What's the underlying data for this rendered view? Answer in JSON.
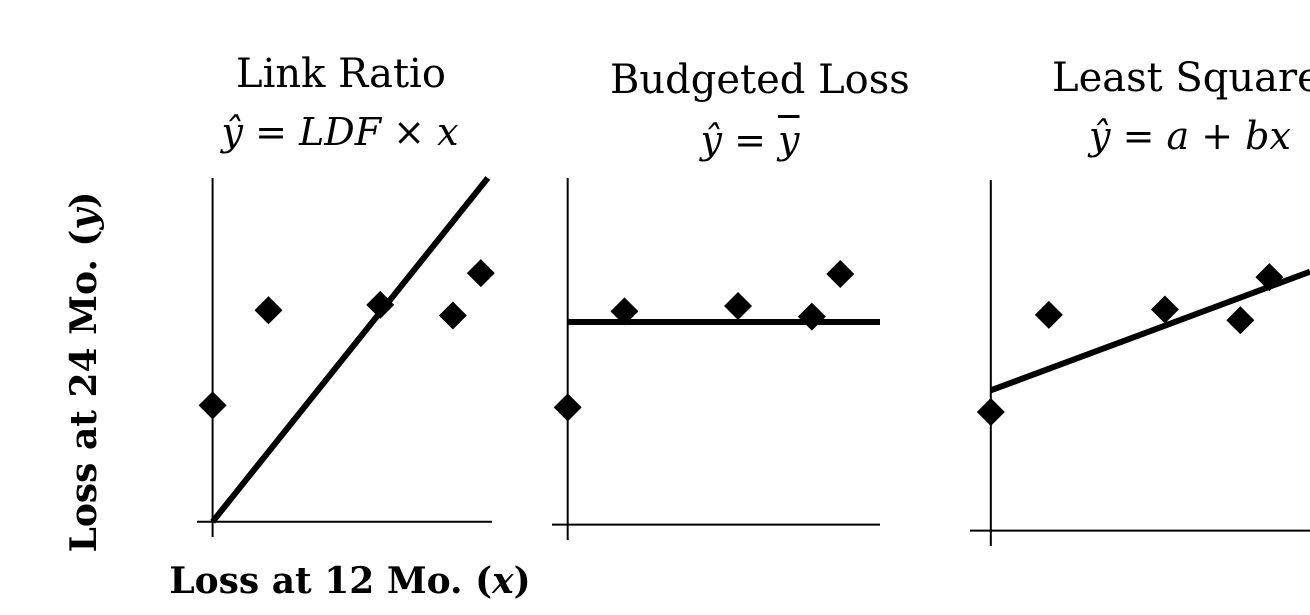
{
  "chart_data": [
    {
      "type": "scatter",
      "title": "Link Ratio",
      "formula": {
        "lhs": "ŷ",
        "eq": "=",
        "rhs": "LDF × x"
      },
      "points": [
        [
          0,
          2.2
        ],
        [
          1,
          4.0
        ],
        [
          3,
          4.1
        ],
        [
          4.3,
          3.9
        ],
        [
          4.8,
          4.7
        ]
      ],
      "fit": {
        "kind": "through_origin",
        "slope": 1.32
      },
      "xlim": [
        -0.1,
        5.0
      ],
      "ylim": [
        -0.1,
        6.5
      ]
    },
    {
      "type": "scatter",
      "title": "Budgeted Loss",
      "formula": {
        "lhs": "ŷ",
        "eq": "=",
        "rhs": "y"
      },
      "points": [
        [
          0,
          2.2
        ],
        [
          1,
          4.0
        ],
        [
          3,
          4.1
        ],
        [
          4.3,
          3.9
        ],
        [
          4.8,
          4.7
        ]
      ],
      "fit": {
        "kind": "constant",
        "value": 3.8
      },
      "xlim": [
        -0.1,
        5.5
      ],
      "ylim": [
        -0.1,
        6.5
      ]
    },
    {
      "type": "scatter",
      "title": "Least Squares",
      "formula": {
        "lhs": "ŷ",
        "eq": "=",
        "rhs": "a + bx"
      },
      "points": [
        [
          0,
          2.2
        ],
        [
          1,
          4.0
        ],
        [
          3,
          4.1
        ],
        [
          4.3,
          3.9
        ],
        [
          4.8,
          4.7
        ]
      ],
      "fit": {
        "kind": "linear",
        "a": 2.6,
        "b": 0.4
      },
      "xlim": [
        -0.1,
        5.5
      ],
      "ylim": [
        -0.1,
        6.5
      ]
    }
  ],
  "shared": {
    "ylabel_prefix": "Loss at 24 Mo. (",
    "ylabel_var": "y",
    "ylabel_suffix": ")",
    "xlabel_prefix": "Loss at 12 Mo. (",
    "xlabel_var": "x",
    "xlabel_suffix": ")"
  }
}
